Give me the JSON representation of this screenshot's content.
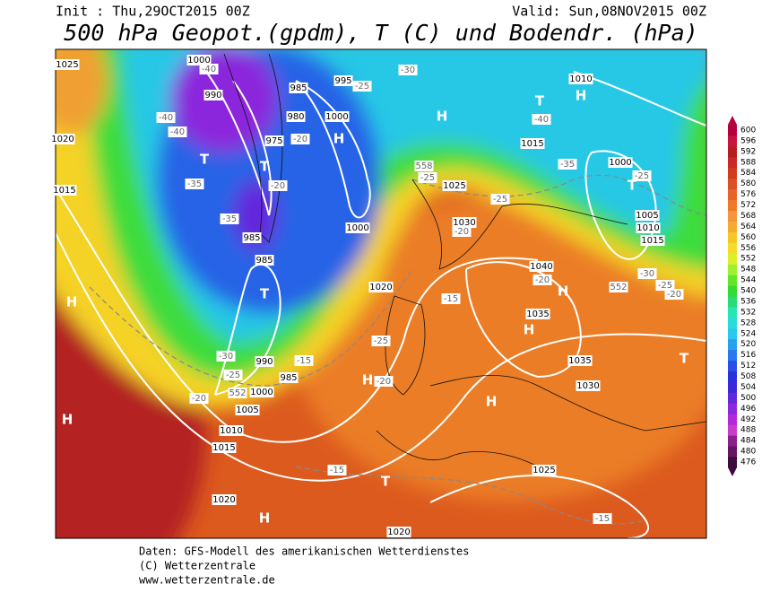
{
  "header": {
    "init": "Init : Thu,29OCT2015 00Z",
    "valid": "Valid: Sun,08NOV2015 00Z",
    "title": "500 hPa Geopot.(gpdm), T (C) und Bodendr. (hPa)"
  },
  "footer": {
    "lines": [
      "Daten: GFS-Modell des amerikanischen Wetterdienstes",
      "(C) Wetterzentrale",
      "www.wetterzentrale.de"
    ]
  },
  "colorbar": {
    "levels": [
      476,
      480,
      484,
      488,
      492,
      496,
      500,
      504,
      508,
      512,
      516,
      520,
      524,
      528,
      532,
      536,
      540,
      544,
      548,
      552,
      556,
      560,
      564,
      568,
      572,
      576,
      580,
      584,
      588,
      592,
      596,
      600
    ],
    "colors": [
      "#3c0a3c",
      "#641464",
      "#8c1e8c",
      "#c83cc8",
      "#b428dc",
      "#8c28dc",
      "#6428dc",
      "#3c28dc",
      "#2832dc",
      "#2850e6",
      "#2878f0",
      "#28a0f0",
      "#28c8f0",
      "#28dcdc",
      "#28e6b4",
      "#28dc78",
      "#32dc32",
      "#64e628",
      "#a0f032",
      "#dcf028",
      "#f5dc28",
      "#f5c828",
      "#f5aa32",
      "#f5963c",
      "#f07828",
      "#e66428",
      "#dc5028",
      "#d23c1e",
      "#c82828",
      "#b41e1e",
      "#c8143c",
      "#b4003c"
    ]
  },
  "map": {
    "highs": [
      "H",
      "H",
      "H",
      "H",
      "H",
      "H",
      "H",
      "H",
      "H",
      "H"
    ],
    "lows": [
      "T",
      "T",
      "T",
      "T",
      "T",
      "T",
      "T"
    ],
    "isobar_labels": [
      "1025",
      "1000",
      "990",
      "985",
      "980",
      "975",
      "1000",
      "995",
      "1020",
      "1015",
      "985",
      "985",
      "990",
      "985",
      "1000",
      "1005",
      "1010",
      "1015",
      "1020",
      "1025",
      "1030",
      "1035",
      "1035",
      "1040",
      "1030",
      "1025",
      "1020",
      "1010",
      "1015",
      "1000",
      "1005",
      "1010",
      "1015",
      "1000",
      "1020"
    ],
    "temperature_labels": [
      "-40",
      "-40",
      "-40",
      "-35",
      "-35",
      "-30",
      "-25",
      "-20",
      "-20",
      "-25",
      "-20",
      "-15",
      "-25",
      "-15",
      "-20",
      "-30",
      "-25",
      "-20",
      "-15",
      "-15",
      "-20",
      "-25",
      "-35",
      "-40",
      "-25",
      "-30",
      "-25",
      "-20"
    ],
    "height_labels": [
      "552",
      "558",
      "552"
    ]
  }
}
